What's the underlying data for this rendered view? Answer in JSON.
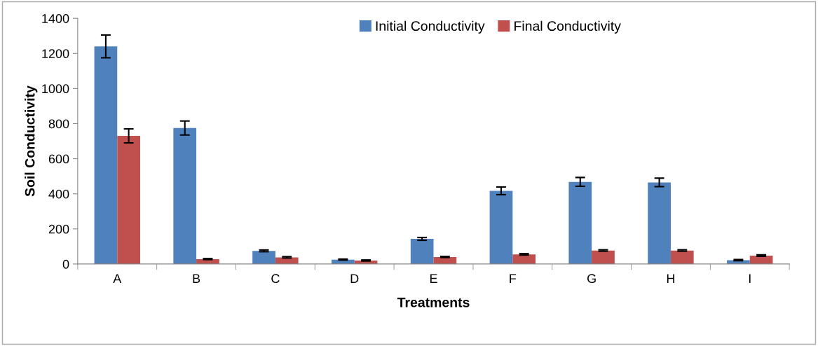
{
  "chart_data": {
    "type": "bar",
    "xlabel": "Treatments",
    "ylabel": "Soil Conductivity",
    "categories": [
      "A",
      "B",
      "C",
      "D",
      "E",
      "F",
      "G",
      "H",
      "I"
    ],
    "series": [
      {
        "name": "Initial Conductivity",
        "color": "#4f81bd",
        "values": [
          1240,
          775,
          75,
          25,
          143,
          417,
          468,
          465,
          22
        ],
        "errors": [
          65,
          40,
          5,
          3,
          8,
          22,
          25,
          24,
          3
        ]
      },
      {
        "name": "Final Conductivity",
        "color": "#c0504d",
        "values": [
          730,
          28,
          38,
          20,
          40,
          55,
          77,
          77,
          48
        ],
        "errors": [
          40,
          3,
          4,
          3,
          3,
          4,
          4,
          4,
          4
        ]
      }
    ],
    "ylim": [
      0,
      1400
    ],
    "yticks": [
      0,
      200,
      400,
      600,
      800,
      1000,
      1200,
      1400
    ],
    "grid": false,
    "legend": "top"
  }
}
